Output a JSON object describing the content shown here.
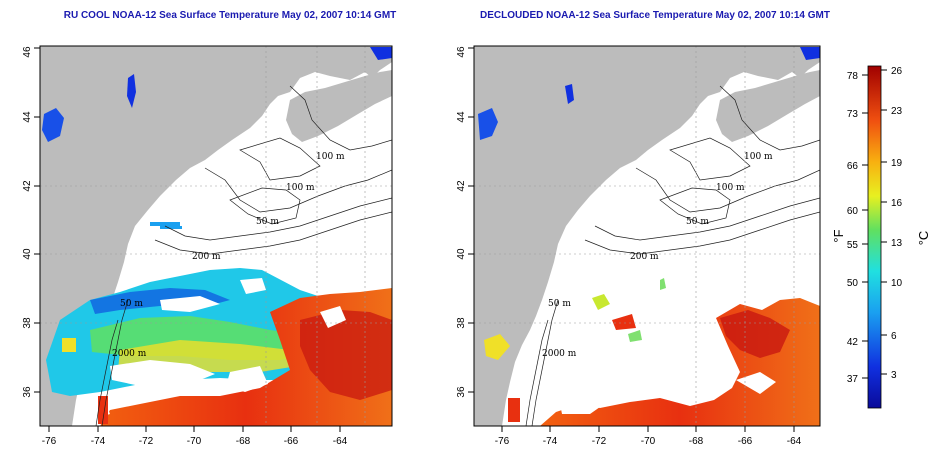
{
  "titles": {
    "left": "RU COOL NOAA-12 Sea Surface Temperature May 02, 2007 10:14 GMT",
    "right": "DECLOUDED NOAA-12 Sea Surface Temperature May 02, 2007 10:14 GMT"
  },
  "map_axes": {
    "lon_ticks": [
      "-76",
      "-74",
      "-72",
      "-70",
      "-68",
      "-66",
      "-64"
    ],
    "lat_ticks": [
      "36",
      "38",
      "40",
      "42",
      "44",
      "46"
    ]
  },
  "contour_labels": {
    "left": [
      "100 m",
      "100 m",
      "50 m",
      "200 m",
      "50 m",
      "2000 m"
    ],
    "right": [
      "100 m",
      "100 m",
      "50 m",
      "200 m",
      "50 m",
      "2000 m"
    ]
  },
  "colorbar": {
    "fahrenheit_ticks": [
      "78",
      "73",
      "66",
      "60",
      "55",
      "50",
      "42",
      "37"
    ],
    "celsius_ticks": [
      "26",
      "23",
      "19",
      "16",
      "13",
      "10",
      "6",
      "3"
    ],
    "fahrenheit_label": "°F",
    "celsius_label": "°C"
  },
  "colors": {
    "land": "#bcbcbc",
    "ocean": "#ffffff",
    "title": "#1a1ab0"
  }
}
